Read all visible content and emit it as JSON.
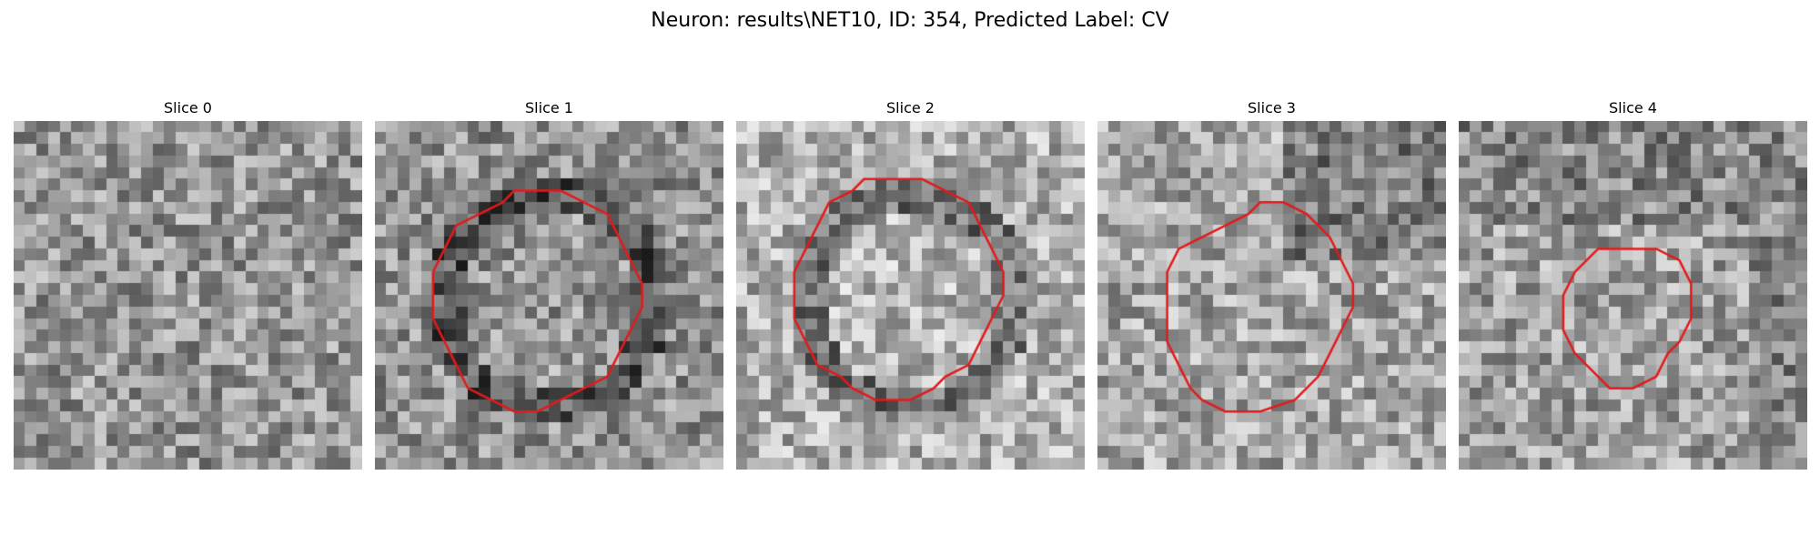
{
  "figure": {
    "title": "Neuron: results\\NET10, ID: 354, Predicted Label: CV"
  },
  "slices": [
    {
      "label": "Slice 0",
      "seed": 11,
      "base": 150,
      "contour": [],
      "dark_ring": false
    },
    {
      "label": "Slice 1",
      "seed": 23,
      "base": 145,
      "dark_ring": true,
      "contour": [
        [
          14,
          6
        ],
        [
          16,
          6
        ],
        [
          18,
          7
        ],
        [
          20,
          8
        ],
        [
          21,
          10
        ],
        [
          22,
          12
        ],
        [
          23,
          14
        ],
        [
          23,
          16
        ],
        [
          22,
          18
        ],
        [
          21,
          20
        ],
        [
          20,
          22
        ],
        [
          18,
          23
        ],
        [
          16,
          24
        ],
        [
          14,
          25
        ],
        [
          12,
          25
        ],
        [
          10,
          24
        ],
        [
          8,
          23
        ],
        [
          7,
          21
        ],
        [
          6,
          19
        ],
        [
          5,
          17
        ],
        [
          5,
          15
        ],
        [
          5,
          13
        ],
        [
          6,
          11
        ],
        [
          7,
          9
        ],
        [
          9,
          8
        ],
        [
          11,
          7
        ],
        [
          12,
          6
        ]
      ]
    },
    {
      "label": "Slice 2",
      "seed": 37,
      "base": 175,
      "dark_ring": true,
      "contour": [
        [
          13,
          5
        ],
        [
          16,
          5
        ],
        [
          18,
          6
        ],
        [
          20,
          7
        ],
        [
          21,
          9
        ],
        [
          22,
          11
        ],
        [
          23,
          13
        ],
        [
          23,
          15
        ],
        [
          22,
          17
        ],
        [
          21,
          19
        ],
        [
          20,
          21
        ],
        [
          18,
          22
        ],
        [
          17,
          23
        ],
        [
          15,
          24
        ],
        [
          12,
          24
        ],
        [
          10,
          23
        ],
        [
          9,
          22
        ],
        [
          7,
          21
        ],
        [
          6,
          19
        ],
        [
          5,
          17
        ],
        [
          5,
          15
        ],
        [
          5,
          13
        ],
        [
          6,
          11
        ],
        [
          7,
          9
        ],
        [
          8,
          7
        ],
        [
          10,
          6
        ],
        [
          11,
          5
        ]
      ]
    },
    {
      "label": "Slice 3",
      "seed": 41,
      "base": 165,
      "dark_ring": false,
      "contour": [
        [
          14,
          7
        ],
        [
          16,
          7
        ],
        [
          18,
          8
        ],
        [
          20,
          10
        ],
        [
          21,
          12
        ],
        [
          22,
          14
        ],
        [
          22,
          16
        ],
        [
          21,
          18
        ],
        [
          20,
          20
        ],
        [
          19,
          22
        ],
        [
          17,
          24
        ],
        [
          14,
          25
        ],
        [
          11,
          25
        ],
        [
          9,
          24
        ],
        [
          8,
          23
        ],
        [
          7,
          21
        ],
        [
          6,
          19
        ],
        [
          6,
          15
        ],
        [
          6,
          13
        ],
        [
          7,
          11
        ],
        [
          9,
          10
        ],
        [
          11,
          9
        ],
        [
          13,
          8
        ]
      ]
    },
    {
      "label": "Slice 4",
      "seed": 53,
      "base": 160,
      "dark_ring": false,
      "contour": [
        [
          14,
          11
        ],
        [
          17,
          11
        ],
        [
          19,
          12
        ],
        [
          20,
          14
        ],
        [
          20,
          17
        ],
        [
          19,
          19
        ],
        [
          18,
          20
        ],
        [
          17,
          22
        ],
        [
          15,
          23
        ],
        [
          13,
          23
        ],
        [
          12,
          22
        ],
        [
          11,
          21
        ],
        [
          10,
          20
        ],
        [
          9,
          18
        ],
        [
          9,
          15
        ],
        [
          10,
          13
        ],
        [
          11,
          12
        ],
        [
          12,
          11
        ]
      ]
    }
  ],
  "colors": {
    "contour": "#e31a1c"
  }
}
